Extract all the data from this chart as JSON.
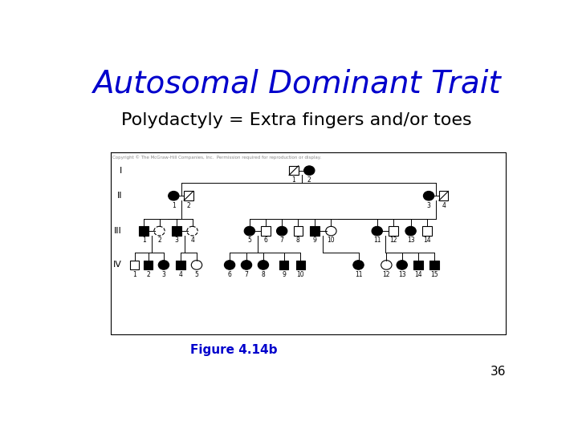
{
  "title": "Autosomal Dominant Trait",
  "subtitle": "Polydactyly = Extra fingers and/or toes",
  "title_color": "#0000CC",
  "subtitle_color": "#000000",
  "figure_label": "Figure 4.14b",
  "figure_label_color": "#0000CC",
  "page_number": "36",
  "bg_color": "#FFFFFF",
  "copyright": "Copyright © The McGraw-Hill Companies, Inc.  Permission required for reproduction or display."
}
